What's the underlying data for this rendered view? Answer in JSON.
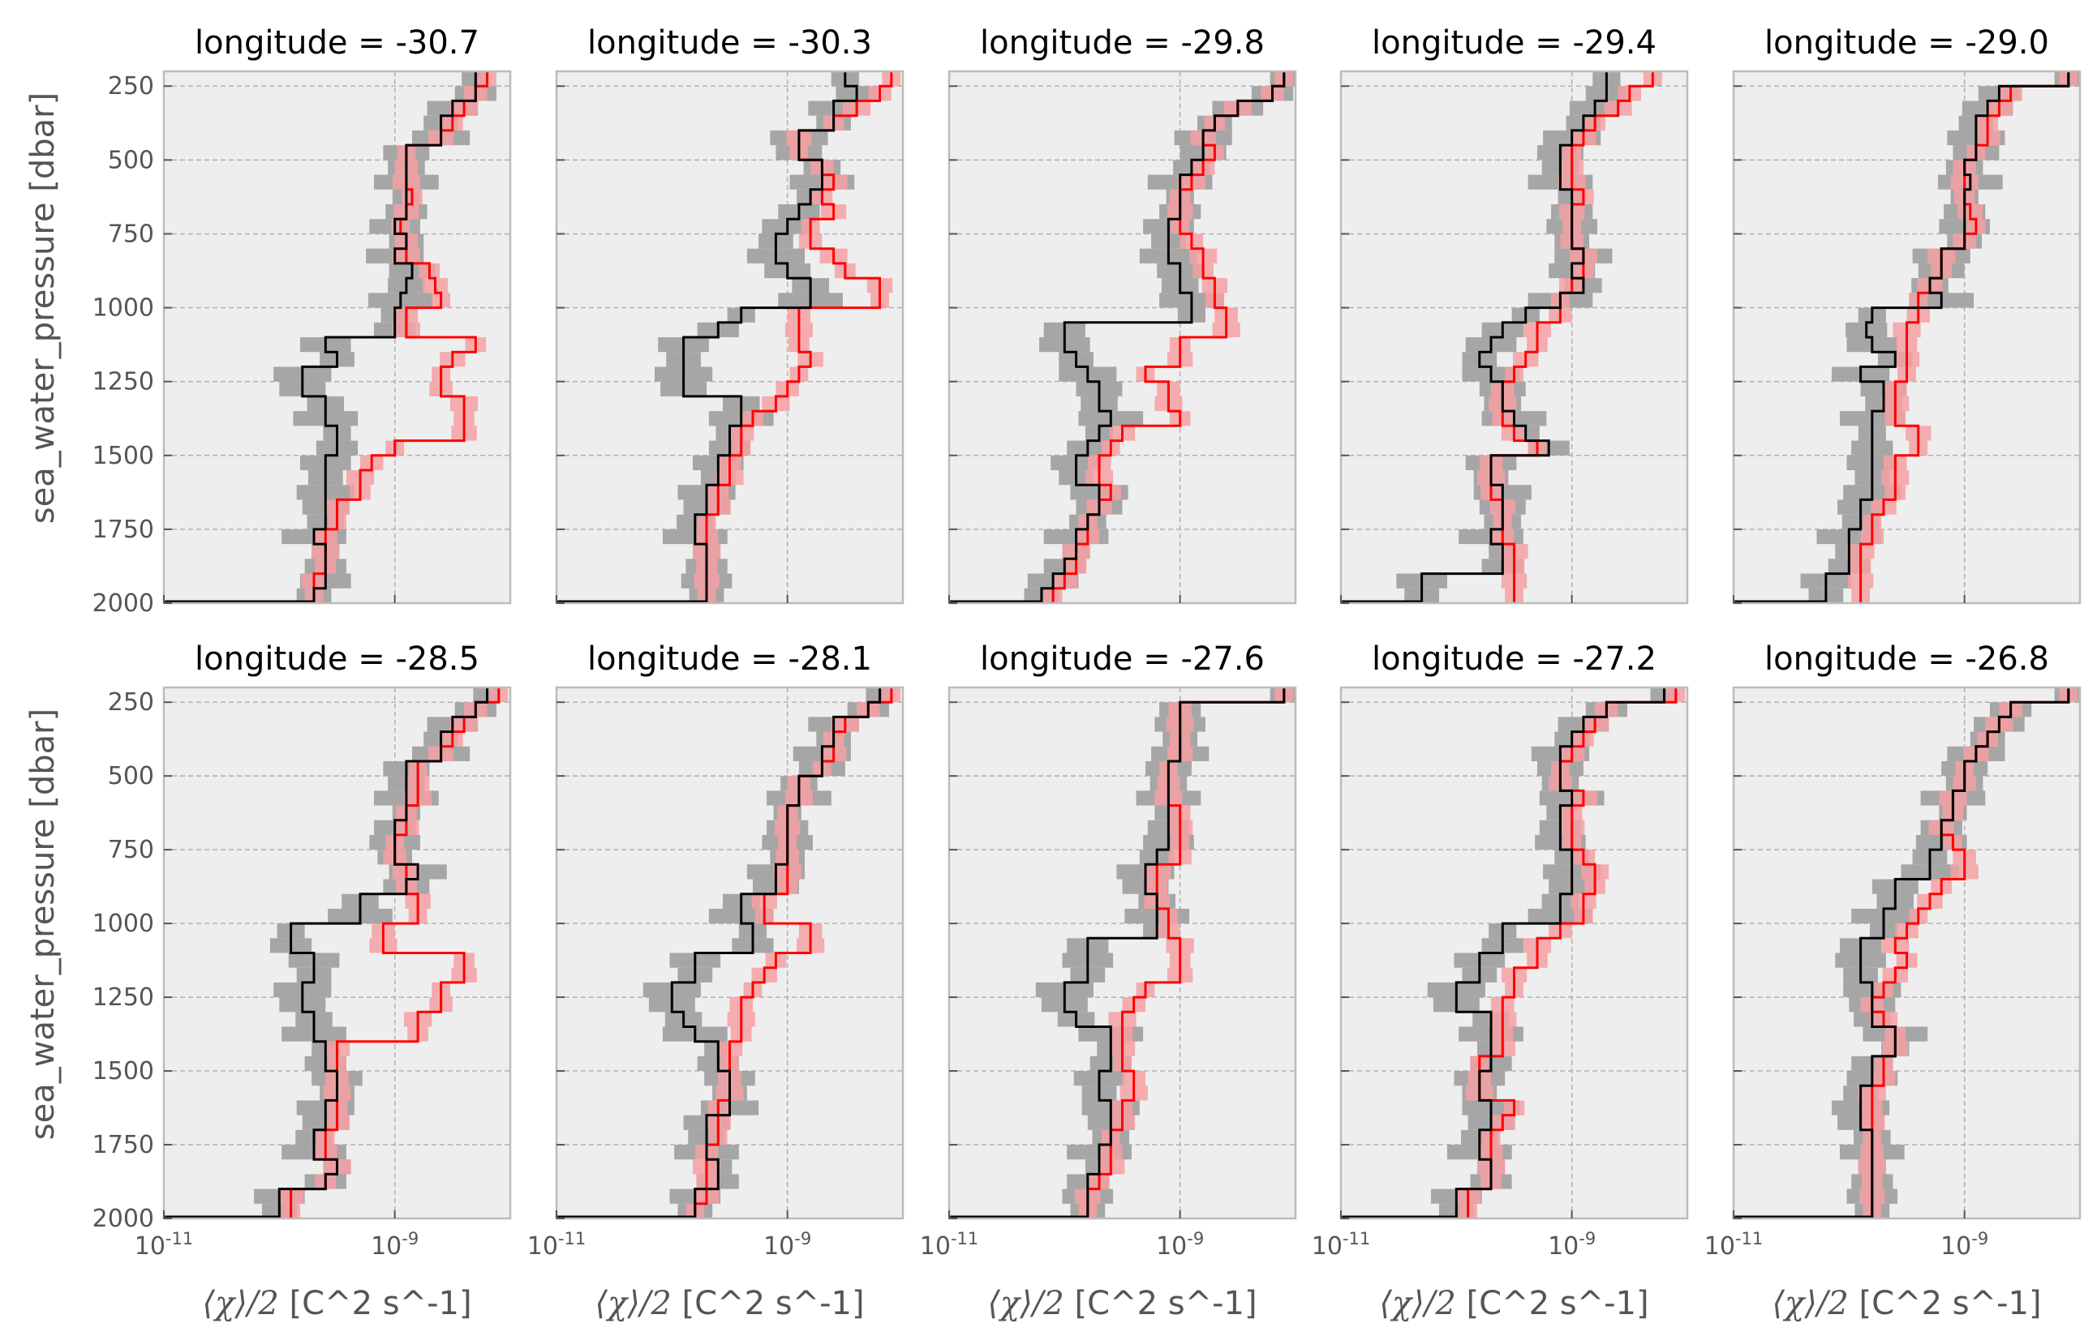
{
  "figure": {
    "colors": {
      "background": "#eeeeee",
      "grid": "#b0b0b0",
      "frame": "#bcbcbc",
      "band_gray": "#a6a6a6",
      "band_red": "#f4a0a3",
      "line_black": "#000000",
      "line_red": "#ff0000"
    },
    "ylabel": "sea_water_pressure [dbar]",
    "xlabel_math": "⟨χ⟩/2",
    "xlabel_units": " [C^2 s^-1]",
    "ytick_labels": [
      "250",
      "500",
      "750",
      "1000",
      "1250",
      "1500",
      "1750",
      "2000"
    ],
    "xtick_labels": [
      {
        "base": "10",
        "exp": "-11"
      },
      {
        "base": "10",
        "exp": "-9"
      }
    ]
  },
  "chart_data": {
    "type": "step",
    "xscale": "log",
    "xlim": [
      1e-11,
      1e-08
    ],
    "ylim": [
      2000,
      200
    ],
    "yticks": [
      250,
      500,
      750,
      1000,
      1250,
      1500,
      1750,
      2000
    ],
    "xticks": [
      1e-11,
      1e-09
    ],
    "grid": true,
    "panels": [
      {
        "title": "longitude = -30.7",
        "p": [
          225,
          275,
          325,
          375,
          425,
          475,
          525,
          575,
          625,
          675,
          725,
          775,
          825,
          875,
          925,
          975,
          1025,
          1075,
          1125,
          1175,
          1225,
          1275,
          1325,
          1375,
          1425,
          1475,
          1525,
          1575,
          1625,
          1675,
          1725,
          1775,
          1825,
          1875,
          1925,
          1975
        ],
        "black": [
          -8.3,
          -8.3,
          -8.5,
          -8.6,
          -8.6,
          -8.9,
          -8.9,
          -8.9,
          -8.9,
          -8.9,
          -9.0,
          -8.9,
          -9.0,
          -8.85,
          -8.9,
          -8.95,
          -9.0,
          -9.0,
          -9.6,
          -9.5,
          -9.8,
          -9.8,
          -9.6,
          -9.6,
          -9.5,
          -9.5,
          -9.6,
          -9.6,
          -9.6,
          -9.6,
          -9.6,
          -9.7,
          -9.6,
          -9.6,
          -9.6,
          -9.7
        ],
        "red": [
          -8.2,
          -8.3,
          -8.4,
          -8.5,
          -8.6,
          -8.9,
          -8.9,
          -8.9,
          -8.85,
          -8.9,
          -8.95,
          -8.9,
          -8.9,
          -8.7,
          -8.65,
          -8.6,
          -8.9,
          -8.9,
          -8.3,
          -8.5,
          -8.6,
          -8.6,
          -8.4,
          -8.4,
          -8.4,
          -9.0,
          -9.2,
          -9.3,
          -9.3,
          -9.5,
          -9.5,
          -9.6,
          -9.6,
          -9.6,
          -9.7,
          -9.7
        ]
      },
      {
        "title": "longitude = -30.3",
        "p": [
          225,
          275,
          325,
          375,
          425,
          475,
          525,
          575,
          625,
          675,
          725,
          775,
          825,
          875,
          925,
          975,
          1025,
          1075,
          1125,
          1175,
          1225,
          1275,
          1325,
          1375,
          1425,
          1475,
          1525,
          1575,
          1625,
          1675,
          1725,
          1775,
          1825,
          1875,
          1925,
          1975
        ],
        "black": [
          -8.5,
          -8.4,
          -8.6,
          -8.6,
          -8.9,
          -8.9,
          -8.7,
          -8.7,
          -8.8,
          -8.9,
          -9.0,
          -9.1,
          -9.1,
          -9.0,
          -8.8,
          -8.8,
          -9.4,
          -9.6,
          -9.9,
          -9.9,
          -9.9,
          -9.9,
          -9.4,
          -9.4,
          -9.5,
          -9.5,
          -9.6,
          -9.6,
          -9.7,
          -9.7,
          -9.8,
          -9.8,
          -9.7,
          -9.7,
          -9.7,
          -9.7
        ],
        "red": [
          -8.1,
          -8.2,
          -8.4,
          -8.6,
          -8.9,
          -8.9,
          -8.7,
          -8.6,
          -8.7,
          -8.6,
          -8.8,
          -8.8,
          -8.6,
          -8.5,
          -8.2,
          -8.2,
          -8.9,
          -8.9,
          -8.9,
          -8.8,
          -8.9,
          -9.0,
          -9.1,
          -9.3,
          -9.4,
          -9.4,
          -9.5,
          -9.5,
          -9.6,
          -9.6,
          -9.7,
          -9.7,
          -9.7,
          -9.7,
          -9.7,
          -9.7
        ]
      },
      {
        "title": "longitude = -29.8",
        "p": [
          225,
          275,
          325,
          375,
          425,
          475,
          525,
          575,
          625,
          675,
          725,
          775,
          825,
          875,
          925,
          975,
          1025,
          1075,
          1125,
          1175,
          1225,
          1275,
          1325,
          1375,
          1425,
          1475,
          1525,
          1575,
          1625,
          1675,
          1725,
          1775,
          1825,
          1875,
          1925,
          1975
        ],
        "black": [
          -8.1,
          -8.2,
          -8.5,
          -8.7,
          -8.8,
          -8.8,
          -8.9,
          -9.0,
          -9.0,
          -9.0,
          -9.1,
          -9.1,
          -9.1,
          -9.0,
          -9.0,
          -8.9,
          -8.9,
          -10.0,
          -10.0,
          -9.9,
          -9.8,
          -9.7,
          -9.7,
          -9.6,
          -9.7,
          -9.8,
          -9.9,
          -9.9,
          -9.7,
          -9.7,
          -9.8,
          -9.9,
          -9.9,
          -10.0,
          -10.1,
          -10.2
        ],
        "red": [
          -8.1,
          -8.2,
          -8.5,
          -8.7,
          -8.8,
          -8.7,
          -8.8,
          -8.9,
          -9.0,
          -9.0,
          -9.0,
          -8.9,
          -8.8,
          -8.8,
          -8.7,
          -8.7,
          -8.6,
          -8.6,
          -9.0,
          -9.0,
          -9.3,
          -9.1,
          -9.1,
          -9.0,
          -9.5,
          -9.6,
          -9.7,
          -9.7,
          -9.6,
          -9.7,
          -9.8,
          -9.8,
          -9.9,
          -9.9,
          -10.0,
          -10.1
        ]
      },
      {
        "title": "longitude = -29.4",
        "p": [
          225,
          275,
          325,
          375,
          425,
          475,
          525,
          575,
          625,
          675,
          725,
          775,
          825,
          875,
          925,
          975,
          1025,
          1075,
          1125,
          1175,
          1225,
          1275,
          1325,
          1375,
          1425,
          1475,
          1525,
          1575,
          1625,
          1675,
          1725,
          1775,
          1825,
          1875,
          1925,
          1975
        ],
        "black": [
          -8.7,
          -8.7,
          -8.8,
          -8.9,
          -9.0,
          -9.1,
          -9.1,
          -9.1,
          -9.0,
          -9.0,
          -9.0,
          -9.0,
          -8.9,
          -9.0,
          -8.9,
          -9.1,
          -9.4,
          -9.6,
          -9.7,
          -9.8,
          -9.7,
          -9.6,
          -9.6,
          -9.5,
          -9.4,
          -9.2,
          -9.7,
          -9.7,
          -9.6,
          -9.6,
          -9.6,
          -9.7,
          -9.6,
          -9.6,
          -10.3,
          -10.3
        ],
        "red": [
          -8.3,
          -8.5,
          -8.6,
          -8.8,
          -8.9,
          -9.0,
          -9.0,
          -9.0,
          -8.9,
          -9.0,
          -9.0,
          -9.0,
          -8.9,
          -8.9,
          -9.0,
          -9.1,
          -9.1,
          -9.3,
          -9.3,
          -9.4,
          -9.5,
          -9.6,
          -9.6,
          -9.6,
          -9.5,
          -9.3,
          -9.7,
          -9.7,
          -9.7,
          -9.6,
          -9.6,
          -9.6,
          -9.5,
          -9.5,
          -9.5,
          -9.5
        ]
      },
      {
        "title": "longitude = -29.0",
        "p": [
          225,
          275,
          325,
          375,
          425,
          475,
          525,
          575,
          625,
          675,
          725,
          775,
          825,
          875,
          925,
          975,
          1025,
          1075,
          1125,
          1175,
          1225,
          1275,
          1325,
          1375,
          1425,
          1475,
          1525,
          1575,
          1625,
          1675,
          1725,
          1775,
          1825,
          1875,
          1925,
          1975
        ],
        "black": [
          -8.1,
          -8.7,
          -8.8,
          -8.9,
          -8.9,
          -8.9,
          -9.0,
          -8.95,
          -9.0,
          -9.0,
          -9.0,
          -9.0,
          -9.2,
          -9.2,
          -9.3,
          -9.2,
          -9.8,
          -9.85,
          -9.8,
          -9.6,
          -9.9,
          -9.7,
          -9.7,
          -9.8,
          -9.8,
          -9.8,
          -9.8,
          -9.8,
          -9.8,
          -9.9,
          -9.9,
          -10.0,
          -10.0,
          -10.0,
          -10.2,
          -10.2
        ],
        "red": [
          -8.1,
          -8.6,
          -8.7,
          -8.8,
          -8.8,
          -8.9,
          -9.0,
          -9.0,
          -9.0,
          -8.95,
          -8.9,
          -9.0,
          -9.2,
          -9.2,
          -9.3,
          -9.4,
          -9.4,
          -9.5,
          -9.5,
          -9.5,
          -9.5,
          -9.6,
          -9.6,
          -9.6,
          -9.4,
          -9.4,
          -9.6,
          -9.6,
          -9.6,
          -9.7,
          -9.8,
          -9.8,
          -9.9,
          -9.9,
          -9.9,
          -9.9
        ]
      },
      {
        "title": "longitude = -28.5",
        "p": [
          225,
          275,
          325,
          375,
          425,
          475,
          525,
          575,
          625,
          675,
          725,
          775,
          825,
          875,
          925,
          975,
          1025,
          1075,
          1125,
          1175,
          1225,
          1275,
          1325,
          1375,
          1425,
          1475,
          1525,
          1575,
          1625,
          1675,
          1725,
          1775,
          1825,
          1875,
          1925,
          1975
        ],
        "black": [
          -8.2,
          -8.3,
          -8.5,
          -8.6,
          -8.6,
          -8.9,
          -8.9,
          -8.9,
          -8.9,
          -9.0,
          -9.0,
          -9.0,
          -8.8,
          -8.9,
          -9.3,
          -9.3,
          -9.9,
          -9.9,
          -9.7,
          -9.7,
          -9.8,
          -9.8,
          -9.7,
          -9.7,
          -9.6,
          -9.6,
          -9.5,
          -9.5,
          -9.6,
          -9.6,
          -9.7,
          -9.7,
          -9.5,
          -9.6,
          -10.0,
          -10.0
        ],
        "red": [
          -8.1,
          -8.3,
          -8.4,
          -8.5,
          -8.6,
          -8.8,
          -8.8,
          -8.8,
          -8.9,
          -8.9,
          -9.0,
          -9.0,
          -8.9,
          -8.9,
          -8.8,
          -8.8,
          -9.1,
          -9.1,
          -8.4,
          -8.4,
          -8.6,
          -8.6,
          -8.8,
          -8.8,
          -9.5,
          -9.5,
          -9.5,
          -9.5,
          -9.5,
          -9.5,
          -9.6,
          -9.6,
          -9.5,
          -9.6,
          -9.9,
          -9.9
        ]
      },
      {
        "title": "longitude = -28.1",
        "p": [
          225,
          275,
          325,
          375,
          425,
          475,
          525,
          575,
          625,
          675,
          725,
          775,
          825,
          875,
          925,
          975,
          1025,
          1075,
          1125,
          1175,
          1225,
          1275,
          1325,
          1375,
          1425,
          1475,
          1525,
          1575,
          1625,
          1675,
          1725,
          1775,
          1825,
          1875,
          1925,
          1975
        ],
        "black": [
          -8.2,
          -8.3,
          -8.6,
          -8.6,
          -8.7,
          -8.7,
          -8.9,
          -8.9,
          -9.0,
          -9.0,
          -9.0,
          -9.0,
          -9.1,
          -9.1,
          -9.4,
          -9.4,
          -9.3,
          -9.3,
          -9.8,
          -9.8,
          -10.0,
          -10.0,
          -9.9,
          -9.8,
          -9.6,
          -9.6,
          -9.5,
          -9.5,
          -9.5,
          -9.7,
          -9.7,
          -9.7,
          -9.6,
          -9.6,
          -9.8,
          -9.8
        ],
        "red": [
          -8.1,
          -8.3,
          -8.5,
          -8.6,
          -8.6,
          -8.7,
          -8.9,
          -8.9,
          -9.0,
          -9.0,
          -9.0,
          -9.0,
          -9.0,
          -9.0,
          -9.2,
          -9.2,
          -8.8,
          -8.8,
          -9.1,
          -9.2,
          -9.3,
          -9.4,
          -9.4,
          -9.4,
          -9.5,
          -9.5,
          -9.5,
          -9.5,
          -9.6,
          -9.6,
          -9.6,
          -9.7,
          -9.7,
          -9.7,
          -9.7,
          -9.8
        ]
      },
      {
        "title": "longitude = -27.6",
        "p": [
          225,
          275,
          325,
          375,
          425,
          475,
          525,
          575,
          625,
          675,
          725,
          775,
          825,
          875,
          925,
          975,
          1025,
          1075,
          1125,
          1175,
          1225,
          1275,
          1325,
          1375,
          1425,
          1475,
          1525,
          1575,
          1625,
          1675,
          1725,
          1775,
          1825,
          1875,
          1925,
          1975
        ],
        "black": [
          -8.1,
          -9.0,
          -9.0,
          -9.0,
          -9.0,
          -9.1,
          -9.1,
          -9.1,
          -9.1,
          -9.1,
          -9.1,
          -9.2,
          -9.3,
          -9.3,
          -9.2,
          -9.2,
          -9.2,
          -9.8,
          -9.8,
          -9.8,
          -10.0,
          -10.0,
          -9.9,
          -9.6,
          -9.6,
          -9.6,
          -9.7,
          -9.7,
          -9.6,
          -9.6,
          -9.6,
          -9.7,
          -9.7,
          -9.8,
          -9.8,
          -9.8
        ],
        "red": [
          -8.1,
          -9.0,
          -9.0,
          -9.0,
          -9.0,
          -9.1,
          -9.1,
          -9.1,
          -9.0,
          -9.0,
          -9.0,
          -9.0,
          -9.2,
          -9.2,
          -9.2,
          -9.1,
          -9.1,
          -9.0,
          -9.0,
          -9.0,
          -9.3,
          -9.4,
          -9.5,
          -9.5,
          -9.5,
          -9.5,
          -9.4,
          -9.4,
          -9.5,
          -9.5,
          -9.6,
          -9.6,
          -9.6,
          -9.7,
          -9.8,
          -9.8
        ]
      },
      {
        "title": "longitude = -27.2",
        "p": [
          225,
          275,
          325,
          375,
          425,
          475,
          525,
          575,
          625,
          675,
          725,
          775,
          825,
          875,
          925,
          975,
          1025,
          1075,
          1125,
          1175,
          1225,
          1275,
          1325,
          1375,
          1425,
          1475,
          1525,
          1575,
          1625,
          1675,
          1725,
          1775,
          1825,
          1875,
          1925,
          1975
        ],
        "black": [
          -8.2,
          -8.7,
          -8.9,
          -9.0,
          -9.1,
          -9.1,
          -9.1,
          -9.0,
          -9.1,
          -9.1,
          -9.1,
          -9.0,
          -9.0,
          -9.0,
          -9.1,
          -9.1,
          -9.6,
          -9.6,
          -9.8,
          -9.8,
          -10.0,
          -10.0,
          -9.7,
          -9.7,
          -9.7,
          -9.7,
          -9.8,
          -9.8,
          -9.7,
          -9.7,
          -9.8,
          -9.8,
          -9.7,
          -9.7,
          -10.0,
          -10.0
        ],
        "red": [
          -8.1,
          -8.7,
          -8.8,
          -8.9,
          -9.0,
          -9.1,
          -9.1,
          -8.9,
          -9.0,
          -9.0,
          -9.0,
          -8.9,
          -8.8,
          -8.8,
          -8.9,
          -8.9,
          -9.1,
          -9.3,
          -9.3,
          -9.5,
          -9.5,
          -9.6,
          -9.6,
          -9.6,
          -9.6,
          -9.8,
          -9.8,
          -9.8,
          -9.5,
          -9.6,
          -9.7,
          -9.7,
          -9.7,
          -9.7,
          -9.9,
          -9.9
        ]
      },
      {
        "title": "longitude = -26.8",
        "p": [
          225,
          275,
          325,
          375,
          425,
          475,
          525,
          575,
          625,
          675,
          725,
          775,
          825,
          875,
          925,
          975,
          1025,
          1075,
          1125,
          1175,
          1225,
          1275,
          1325,
          1375,
          1425,
          1475,
          1525,
          1575,
          1625,
          1675,
          1725,
          1775,
          1825,
          1875,
          1925,
          1975
        ],
        "black": [
          -8.1,
          -8.6,
          -8.7,
          -8.8,
          -8.9,
          -9.0,
          -9.0,
          -9.1,
          -9.1,
          -9.2,
          -9.2,
          -9.3,
          -9.3,
          -9.6,
          -9.6,
          -9.7,
          -9.7,
          -9.9,
          -9.9,
          -9.9,
          -9.8,
          -9.8,
          -9.8,
          -9.6,
          -9.6,
          -9.8,
          -9.8,
          -9.9,
          -9.9,
          -9.9,
          -9.8,
          -9.8,
          -9.8,
          -9.8,
          -9.8,
          -9.8
        ],
        "red": [
          -8.1,
          -8.6,
          -8.7,
          -8.8,
          -8.9,
          -9.0,
          -9.0,
          -9.1,
          -9.1,
          -9.2,
          -9.1,
          -9.0,
          -9.0,
          -9.2,
          -9.3,
          -9.4,
          -9.5,
          -9.6,
          -9.5,
          -9.6,
          -9.7,
          -9.8,
          -9.7,
          -9.6,
          -9.6,
          -9.7,
          -9.7,
          -9.8,
          -9.8,
          -9.8,
          -9.8,
          -9.8,
          -9.8,
          -9.8,
          -9.8,
          -9.8
        ]
      }
    ]
  }
}
